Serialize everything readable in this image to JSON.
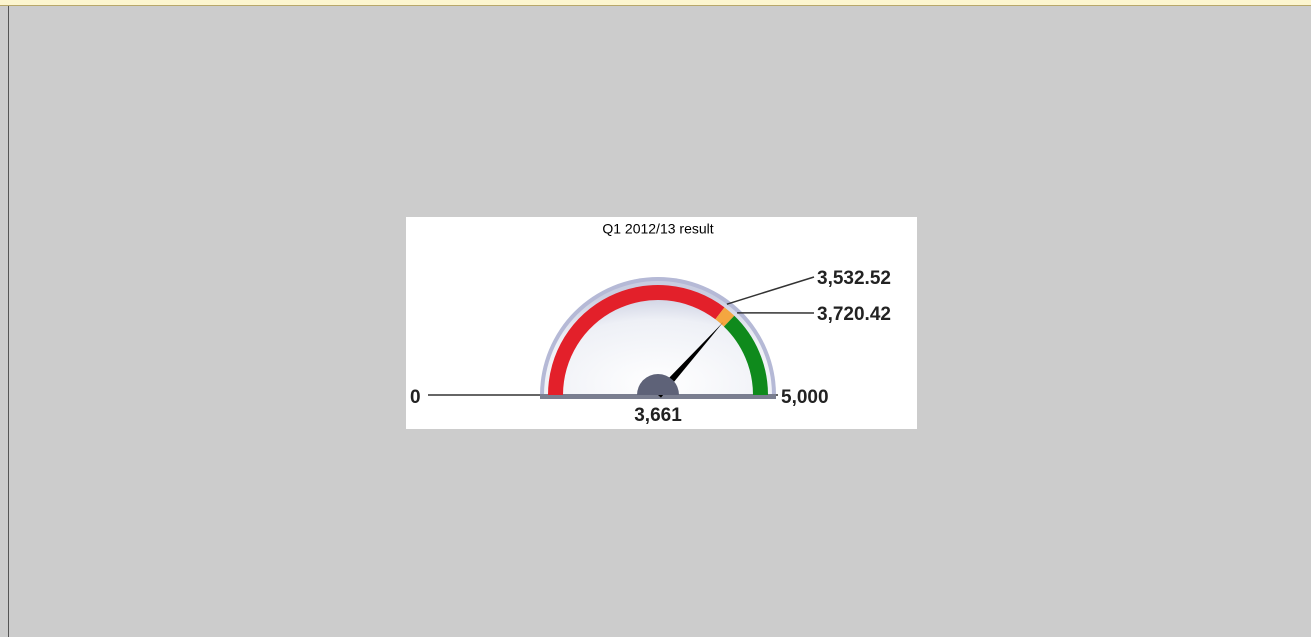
{
  "chart_data": {
    "type": "gauge",
    "title": "Q1 2012/13 result",
    "values": [
      3661
    ],
    "value_labels": [
      "3,661"
    ],
    "ylim": [
      0,
      5000
    ],
    "yticks": [
      0,
      {
        "value": 5000,
        "label": "5,000"
      }
    ],
    "thresholds": [
      {
        "value": 3532.52,
        "label": "3,532.52"
      },
      {
        "value": 3720.42,
        "label": "3,720.42"
      }
    ],
    "band_colors": [
      "#e3202a",
      "#f4a640",
      "#0f8a1c"
    ]
  }
}
